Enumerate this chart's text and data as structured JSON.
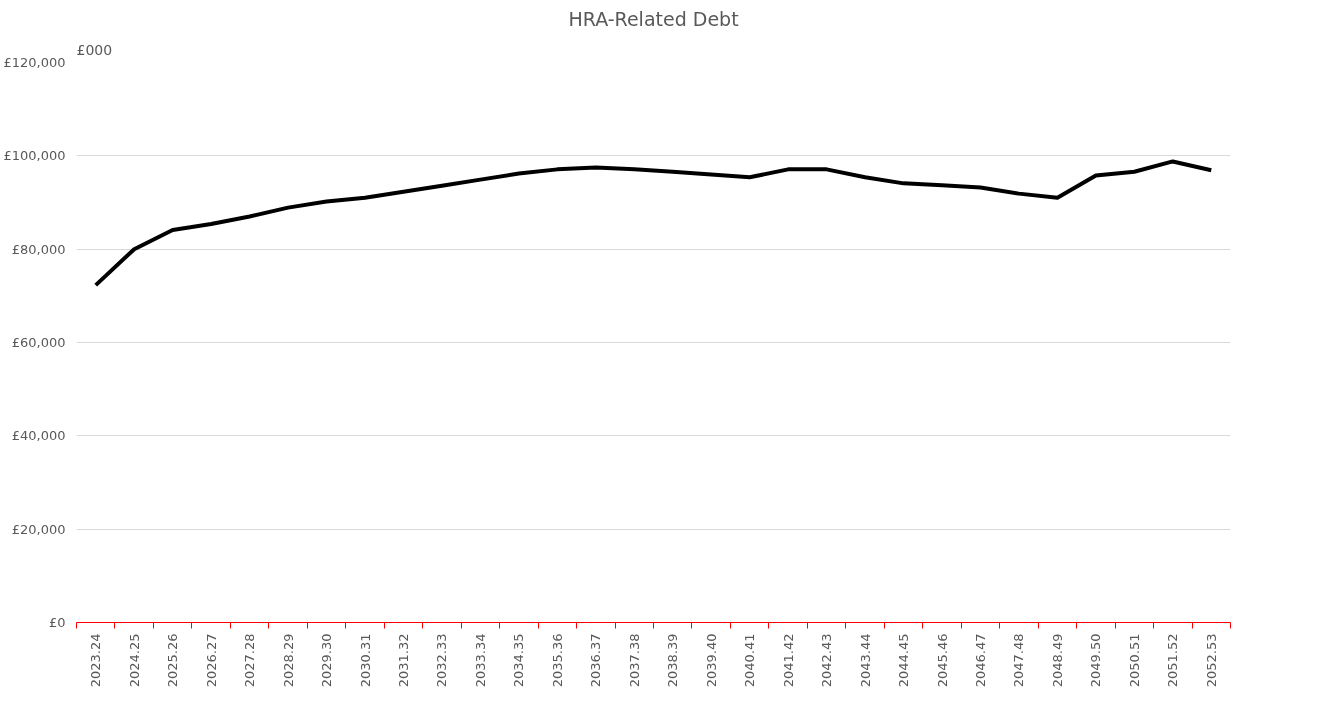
{
  "chart_data": {
    "type": "line",
    "title": "HRA-Related Debt",
    "ylabel": "£000",
    "categories": [
      "2023.24",
      "2024.25",
      "2025.26",
      "2026.27",
      "2027.28",
      "2028.29",
      "2029.30",
      "2030.31",
      "2031.32",
      "2032.33",
      "2033.34",
      "2034.35",
      "2035.36",
      "2036.37",
      "2037.38",
      "2038.39",
      "2039.40",
      "2040.41",
      "2041.42",
      "2042.43",
      "2043.44",
      "2044.45",
      "2045.46",
      "2046.47",
      "2047.48",
      "2048.49",
      "2049.50",
      "2050.51",
      "2051.52",
      "2052.53"
    ],
    "series": [
      {
        "color": "#000000",
        "values": [
          72300,
          80000,
          84100,
          85400,
          87000,
          88900,
          90200,
          91000,
          92300,
          93600,
          94900,
          96200,
          97100,
          97500,
          97100,
          96600,
          96000,
          95400,
          97100,
          97100,
          95400,
          94100,
          93700,
          93200,
          91900,
          91000,
          95800,
          96600,
          98800,
          96900
        ]
      }
    ],
    "ylim": [
      0,
      120000
    ],
    "yticks": [
      {
        "value": 0,
        "label": "£0"
      },
      {
        "value": 20000,
        "label": "£20,000"
      },
      {
        "value": 40000,
        "label": "£40,000"
      },
      {
        "value": 60000,
        "label": "£60,000"
      },
      {
        "value": 80000,
        "label": "£80,000"
      },
      {
        "value": 100000,
        "label": "£100,000"
      },
      {
        "value": 120000,
        "label": "£120,000"
      }
    ],
    "grid": "y",
    "marker": "none",
    "line_style": "solid"
  }
}
